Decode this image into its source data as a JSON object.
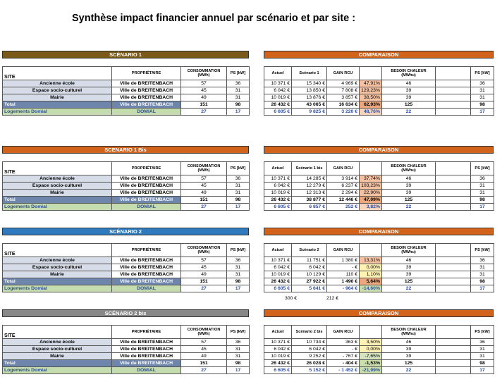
{
  "title": "Synthèse impact financier annuel par scénario et par site :",
  "comparaison_label": "COMPARAISON",
  "left_headers": [
    "SITE",
    "PROPRIÉTAIRE",
    "CONSOMMATION (MWh)",
    "PS [kW]"
  ],
  "right_headers_common": {
    "actuel": "Actuel",
    "gain": "GAIN RCU",
    "besoin": "BESOIN CHALEUR (MWhu)",
    "ps": "PS [kW]"
  },
  "colors": {
    "sc1": "#7a5a19",
    "sc1bis": "#d2631b",
    "sc2": "#2f79bd",
    "sc2bis": "#888888",
    "comparaison": "#d2631b"
  },
  "scenarios": [
    {
      "name": "SCÉNARIO 1",
      "scenario_col": "Scénario 1",
      "rows": [
        {
          "site": "Ancienne école",
          "owner": "Ville de BREITENBACH",
          "conso": "57",
          "ps": "36",
          "actuel": "10 371 €",
          "scen": "15 340 €",
          "gain": "4 969 €",
          "pct": "47,91%",
          "besoin": "46",
          "ps2": "36"
        },
        {
          "site": "Espace socio-culturel",
          "owner": "Ville de BREITENBACH",
          "conso": "45",
          "ps": "31",
          "actuel": "6 042 €",
          "scen": "13 850 €",
          "gain": "7 808 €",
          "pct": "129,23%",
          "besoin": "39",
          "ps2": "31"
        },
        {
          "site": "Mairie",
          "owner": "Ville de BREITENBACH",
          "conso": "49",
          "ps": "31",
          "actuel": "10 019 €",
          "scen": "13 876 €",
          "gain": "3 857 €",
          "pct": "38,50%",
          "besoin": "39",
          "ps2": "31"
        },
        {
          "site": "Total",
          "owner": "Ville de BREITENBACH",
          "conso": "151",
          "ps": "98",
          "actuel": "26 432 €",
          "scen": "43 065 €",
          "gain": "16 634 €",
          "pct": "62,93%",
          "besoin": "125",
          "ps2": "98"
        },
        {
          "site": "Logements Domial",
          "owner": "DOMIAL",
          "conso": "27",
          "ps": "17",
          "actuel": "6 605 €",
          "scen": "9 825 €",
          "gain": "3 220 €",
          "pct": "48,76%",
          "besoin": "22",
          "ps2": "17"
        }
      ]
    },
    {
      "name": "SCENARIO 1 Bis",
      "scenario_col": "Scénario 1 bis",
      "rows": [
        {
          "site": "Ancienne école",
          "owner": "Ville de BREITENBACH",
          "conso": "57",
          "ps": "36",
          "actuel": "10 371 €",
          "scen": "14 285 €",
          "gain": "3 914 €",
          "pct": "37,74%",
          "besoin": "46",
          "ps2": "36"
        },
        {
          "site": "Espace socio-culturel",
          "owner": "Ville de BREITENBACH",
          "conso": "45",
          "ps": "31",
          "actuel": "6 042 €",
          "scen": "12 279 €",
          "gain": "6 237 €",
          "pct": "103,23%",
          "besoin": "39",
          "ps2": "31"
        },
        {
          "site": "Mairie",
          "owner": "Ville de BREITENBACH",
          "conso": "49",
          "ps": "31",
          "actuel": "10 019 €",
          "scen": "12 313 €",
          "gain": "2 294 €",
          "pct": "22,90%",
          "besoin": "39",
          "ps2": "31"
        },
        {
          "site": "Total",
          "owner": "Ville de BREITENBACH",
          "conso": "151",
          "ps": "98",
          "actuel": "26 432 €",
          "scen": "38 877 €",
          "gain": "12 446 €",
          "pct": "47,09%",
          "besoin": "125",
          "ps2": "98"
        },
        {
          "site": "Logements Domial",
          "owner": "DOMIAL",
          "conso": "27",
          "ps": "17",
          "actuel": "6 605 €",
          "scen": "6 857 €",
          "gain": "252 €",
          "pct": "3,82%",
          "besoin": "22",
          "ps2": "17"
        }
      ]
    },
    {
      "name": "SCÉNARIO 2",
      "scenario_col": "Scénario 2",
      "rows": [
        {
          "site": "Ancienne école",
          "owner": "Ville de BREITENBACH",
          "conso": "57",
          "ps": "36",
          "actuel": "10 371 €",
          "scen": "11 751 €",
          "gain": "1 380 €",
          "pct": "13,31%",
          "besoin": "46",
          "ps2": "36"
        },
        {
          "site": "Espace socio-culturel",
          "owner": "Ville de BREITENBACH",
          "conso": "45",
          "ps": "31",
          "actuel": "6 042 €",
          "scen": "6 042 €",
          "gain": "-  €",
          "pct": "0,00%",
          "besoin": "39",
          "ps2": "31"
        },
        {
          "site": "Mairie",
          "owner": "Ville de BREITENBACH",
          "conso": "49",
          "ps": "31",
          "actuel": "10 019 €",
          "scen": "10 129 €",
          "gain": "110 €",
          "pct": "1,10%",
          "besoin": "39",
          "ps2": "31"
        },
        {
          "site": "Total",
          "owner": "Ville de BREITENBACH",
          "conso": "151",
          "ps": "98",
          "actuel": "26 432 €",
          "scen": "27 922 €",
          "gain": "1 490 €",
          "pct": "5,64%",
          "besoin": "125",
          "ps2": "98"
        },
        {
          "site": "Logements Domial",
          "owner": "DOMIAL",
          "conso": "27",
          "ps": "17",
          "actuel": "6 605 €",
          "scen": "5 641 €",
          "gain": "-  964 €",
          "pct": "-14,60%",
          "besoin": "22",
          "ps2": "17"
        }
      ],
      "extra": [
        "300 €",
        "212 €"
      ]
    },
    {
      "name": "SCÉNARIO 2 bis",
      "scenario_col": "Scénario 2 bis",
      "rows": [
        {
          "site": "Ancienne école",
          "owner": "Ville de BREITENBACH",
          "conso": "57",
          "ps": "36",
          "actuel": "10 371 €",
          "scen": "10 734 €",
          "gain": "363 €",
          "pct": "3,50%",
          "besoin": "46",
          "ps2": "36"
        },
        {
          "site": "Espace socio-culturel",
          "owner": "Ville de BREITENBACH",
          "conso": "45",
          "ps": "31",
          "actuel": "6 042 €",
          "scen": "6 042 €",
          "gain": "-  €",
          "pct": "0,00%",
          "besoin": "39",
          "ps2": "31"
        },
        {
          "site": "Mairie",
          "owner": "Ville de BREITENBACH",
          "conso": "49",
          "ps": "31",
          "actuel": "10 019 €",
          "scen": "9 252 €",
          "gain": "-  767 €",
          "pct": "-7,65%",
          "besoin": "39",
          "ps2": "31"
        },
        {
          "site": "Total",
          "owner": "Ville de BREITENBACH",
          "conso": "151",
          "ps": "98",
          "actuel": "26 432 €",
          "scen": "26 028 €",
          "gain": "-  404 €",
          "pct": "-1,53%",
          "besoin": "125",
          "ps2": "98"
        },
        {
          "site": "Logements Domial",
          "owner": "DOMIAL",
          "conso": "27",
          "ps": "17",
          "actuel": "6 605 €",
          "scen": "5 152 €",
          "gain": "-  1 452 €",
          "pct": "-21,99%",
          "besoin": "22",
          "ps2": "17"
        }
      ]
    }
  ]
}
